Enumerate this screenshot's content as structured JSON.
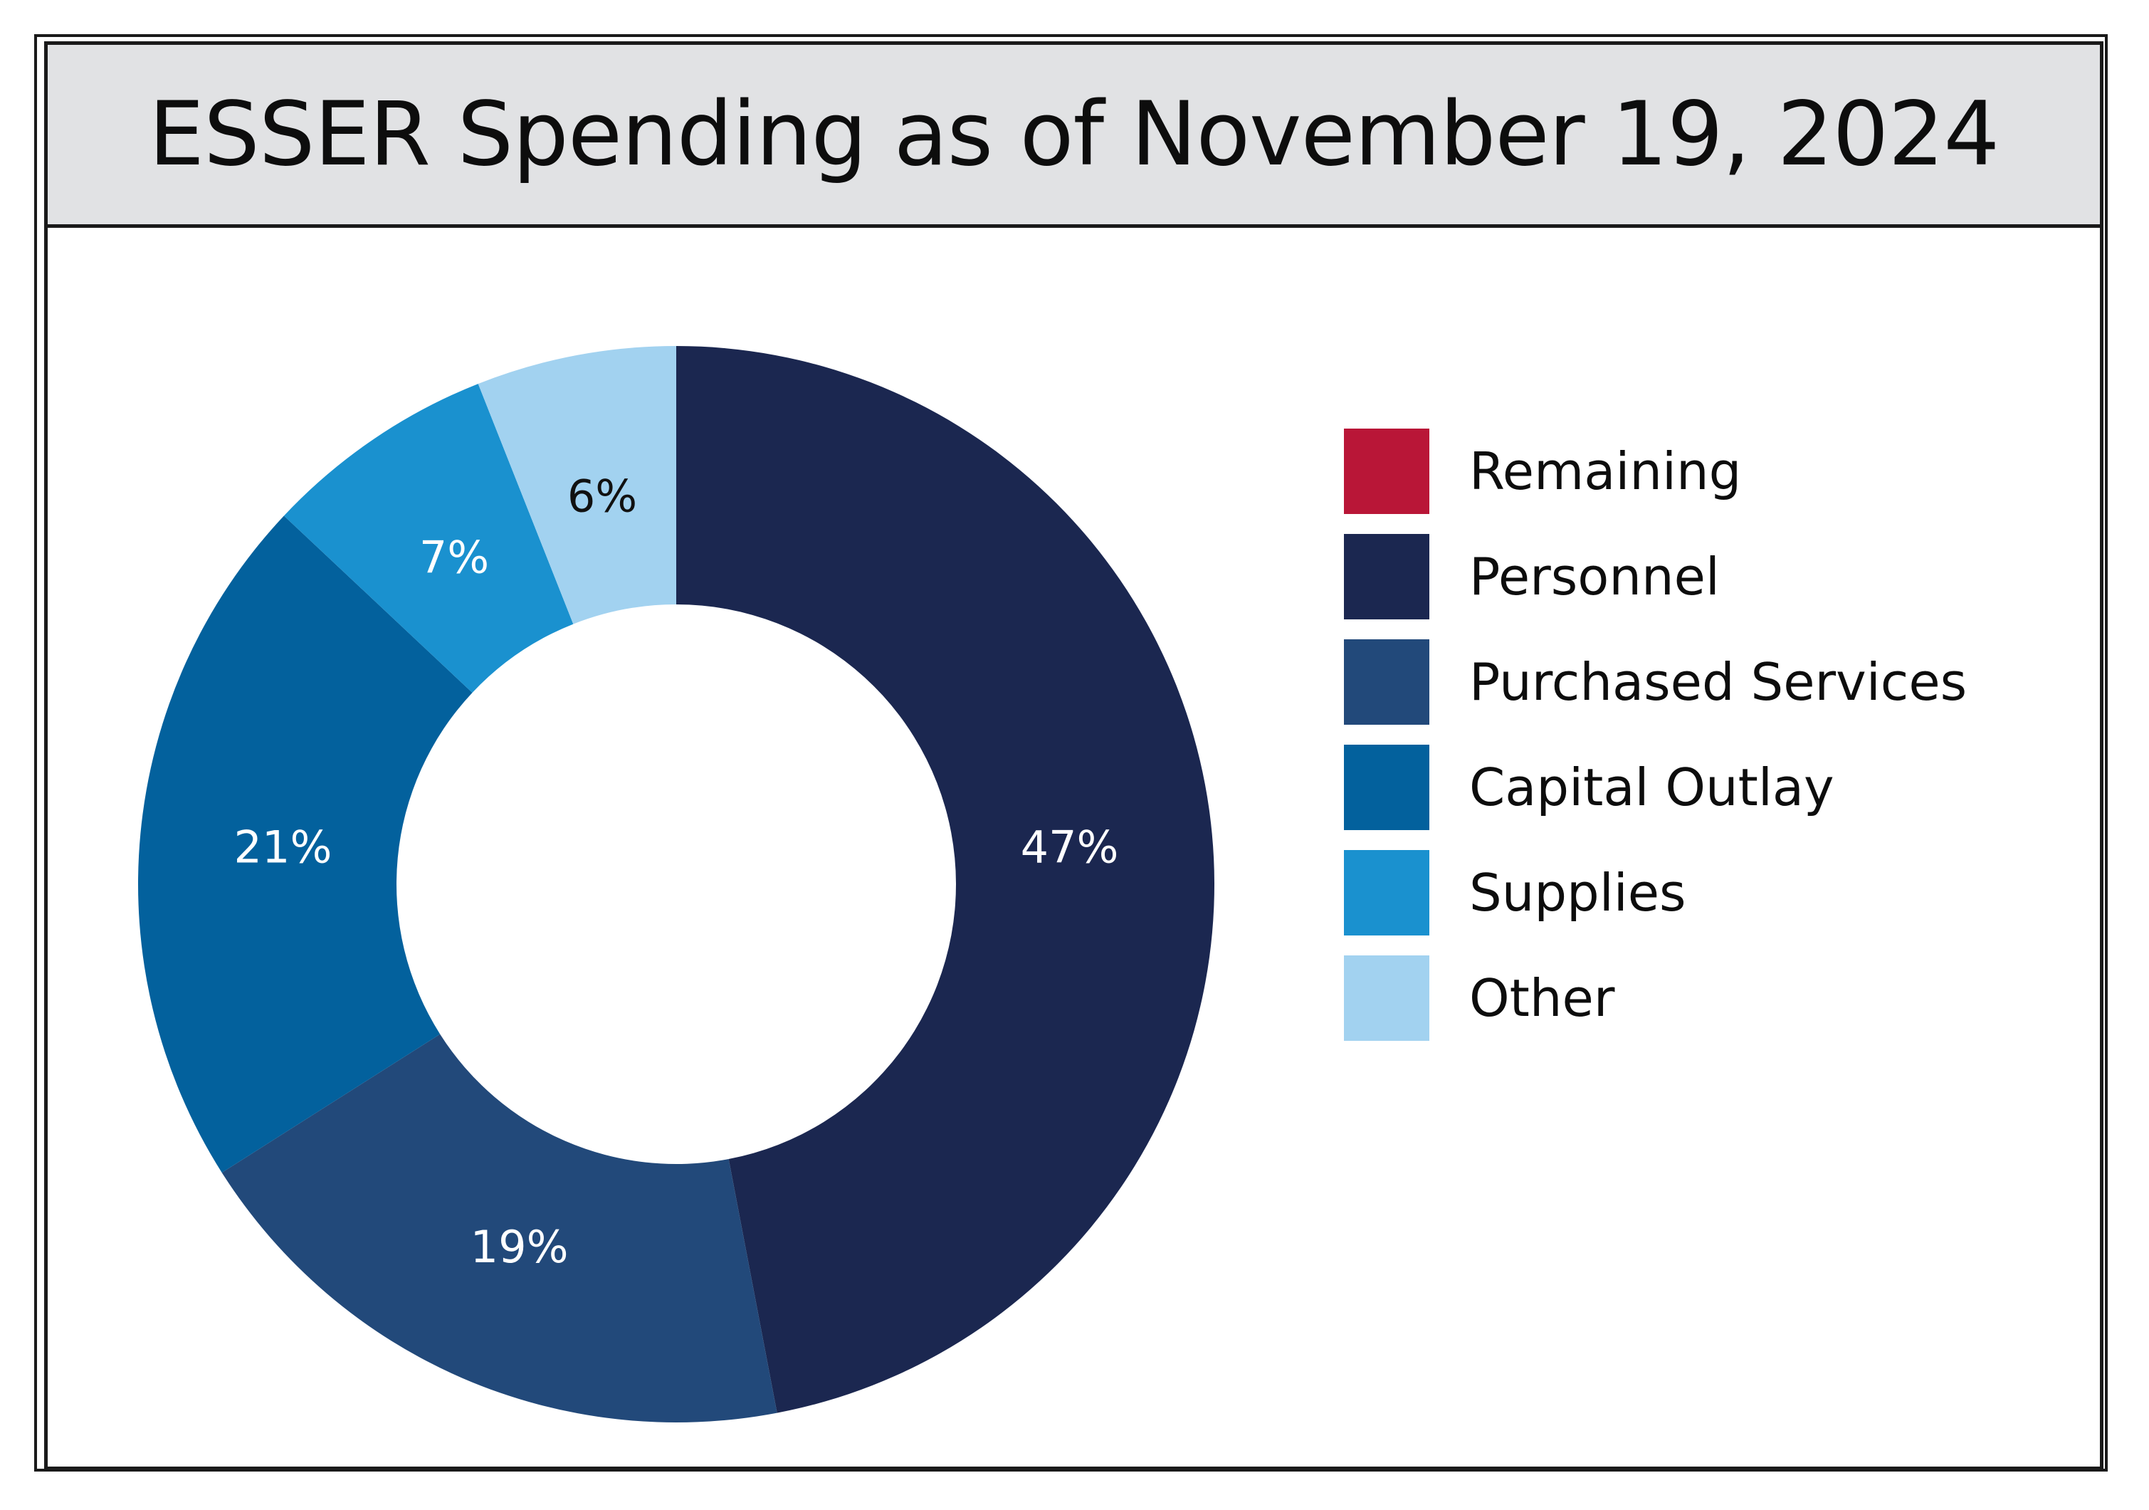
{
  "chart_data": {
    "type": "pie",
    "title": "ESSER Spending as of November 19, 2024",
    "donut": true,
    "slices": [
      {
        "label": "Personnel",
        "value": 47,
        "display": "47%",
        "color": "#1b2750",
        "label_color": "#ffffff"
      },
      {
        "label": "Purchased Services",
        "value": 19,
        "display": "19%",
        "color": "#22497a",
        "label_color": "#ffffff"
      },
      {
        "label": "Capital Outlay",
        "value": 21,
        "display": "21%",
        "color": "#03619d",
        "label_color": "#ffffff"
      },
      {
        "label": "Supplies",
        "value": 7,
        "display": "7%",
        "color": "#1a91cf",
        "label_color": "#ffffff"
      },
      {
        "label": "Other",
        "value": 6,
        "display": "6%",
        "color": "#a2d2f0",
        "label_color": "#111111"
      }
    ],
    "legend": {
      "placement": "right",
      "entries": [
        {
          "label": "Remaining",
          "color": "#b91637"
        },
        {
          "label": "Personnel",
          "color": "#1b2750"
        },
        {
          "label": "Purchased Services",
          "color": "#22497a"
        },
        {
          "label": "Capital Outlay",
          "color": "#03619d"
        },
        {
          "label": "Supplies",
          "color": "#1a91cf"
        },
        {
          "label": "Other",
          "color": "#a2d2f0"
        }
      ]
    }
  }
}
